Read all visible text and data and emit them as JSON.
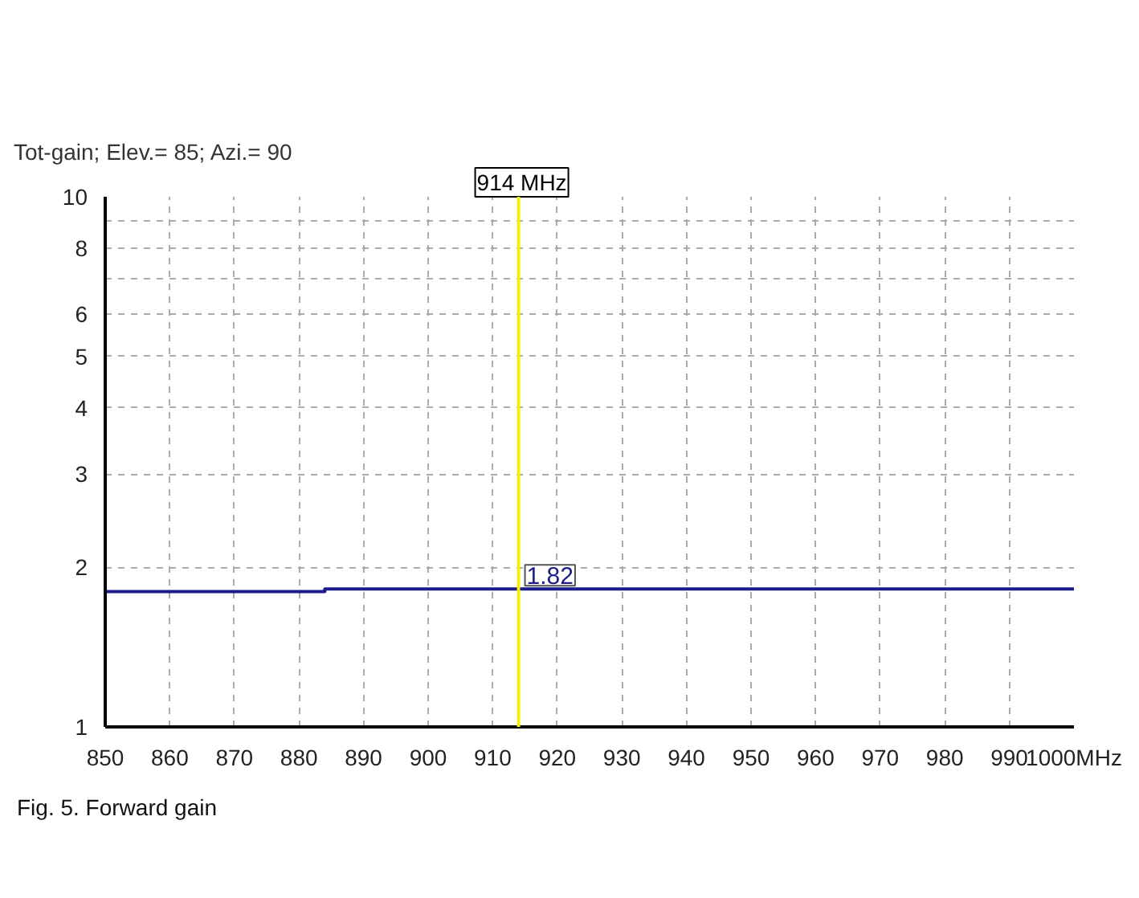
{
  "chart_data": {
    "type": "line",
    "title": "Tot-gain; Elev.= 85; Azi.= 90",
    "x": [
      850,
      884,
      884,
      1000
    ],
    "series": [
      {
        "color": "#1c1c8c",
        "values": [
          1.8,
          1.8,
          1.82,
          1.82
        ]
      }
    ],
    "xlim": [
      850,
      1000
    ],
    "xticks": [
      850,
      860,
      870,
      880,
      890,
      900,
      910,
      920,
      930,
      940,
      950,
      960,
      970,
      980,
      990,
      {
        "value": 1000,
        "label": "1000MHz"
      }
    ],
    "ylim": [
      1,
      10
    ],
    "yticks": [
      1,
      2,
      3,
      4,
      5,
      6,
      {
        "value": 7,
        "label": null
      },
      8,
      {
        "value": 9,
        "label": null
      },
      10
    ],
    "log": "y",
    "grid": true,
    "ref_lines": [
      {
        "axis": "x",
        "value": 914,
        "label": "914 MHz",
        "color": "#f2f200"
      }
    ],
    "annotations": [
      {
        "text": "1.82",
        "x": 914,
        "y": 1.82
      },
      "Fig. 5.  Forward gain"
    ]
  }
}
